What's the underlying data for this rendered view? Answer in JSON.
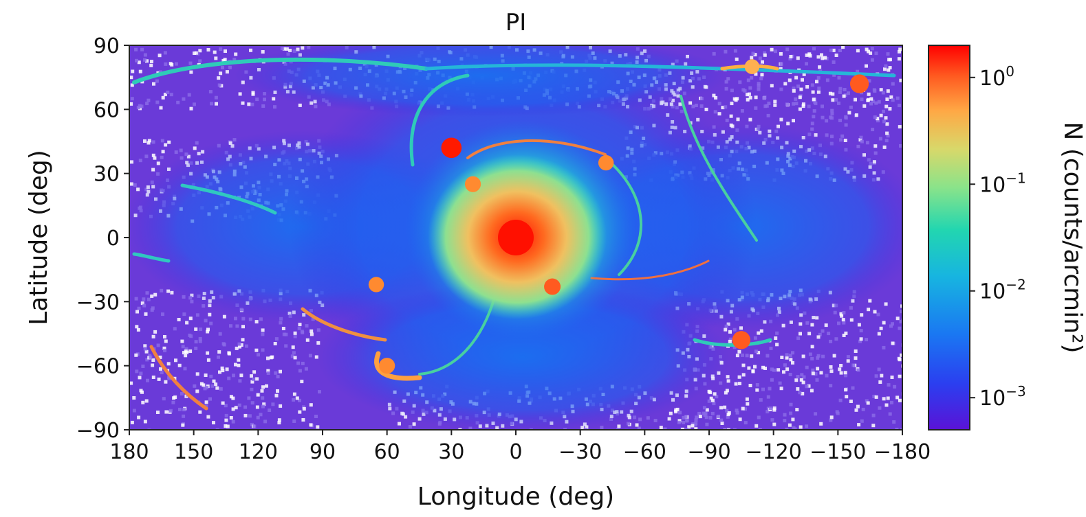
{
  "chart_data": {
    "type": "heatmap",
    "title": "PI",
    "xlabel": "Longitude (deg)",
    "ylabel": "Latitude (deg)",
    "xlim": [
      180,
      -180
    ],
    "ylim": [
      -90,
      90
    ],
    "x_ticks": [
      180,
      150,
      120,
      90,
      60,
      30,
      0,
      -30,
      -60,
      -90,
      -120,
      -150,
      -180
    ],
    "x_tick_labels": [
      "180",
      "150",
      "120",
      "90",
      "60",
      "30",
      "0",
      "−30",
      "−60",
      "−90",
      "−120",
      "−150",
      "−180"
    ],
    "y_ticks": [
      90,
      60,
      30,
      0,
      -30,
      -60,
      -90
    ],
    "y_tick_labels": [
      "90",
      "60",
      "30",
      "0",
      "−30",
      "−60",
      "−90"
    ],
    "colorbar": {
      "label": "N (counts/arcmin²)",
      "scale": "log",
      "colormap": "rainbow",
      "range": [
        0.0005,
        2.0
      ],
      "ticks": [
        1,
        0.1,
        0.01,
        0.001
      ],
      "tick_labels": [
        {
          "base": "10",
          "exp": "0"
        },
        {
          "base": "10",
          "exp": "−1"
        },
        {
          "base": "10",
          "exp": "−2"
        },
        {
          "base": "10",
          "exp": "−3"
        }
      ]
    },
    "features": {
      "central_peak": {
        "lon": 0,
        "lat": 0,
        "value": 1.5
      },
      "bright_clumps": [
        {
          "lon": 30,
          "lat": 42,
          "value": 1.2
        },
        {
          "lon": 20,
          "lat": 25,
          "value": 0.4
        },
        {
          "lon": -17,
          "lat": -23,
          "value": 0.5
        },
        {
          "lon": -105,
          "lat": -48,
          "value": 0.8
        },
        {
          "lon": -160,
          "lat": 72,
          "value": 0.9
        },
        {
          "lon": -42,
          "lat": 35,
          "value": 0.3
        },
        {
          "lon": 65,
          "lat": -22,
          "value": 0.3
        },
        {
          "lon": 60,
          "lat": -60,
          "value": 0.4
        },
        {
          "lon": -110,
          "lat": 80,
          "value": 0.2
        }
      ]
    }
  }
}
